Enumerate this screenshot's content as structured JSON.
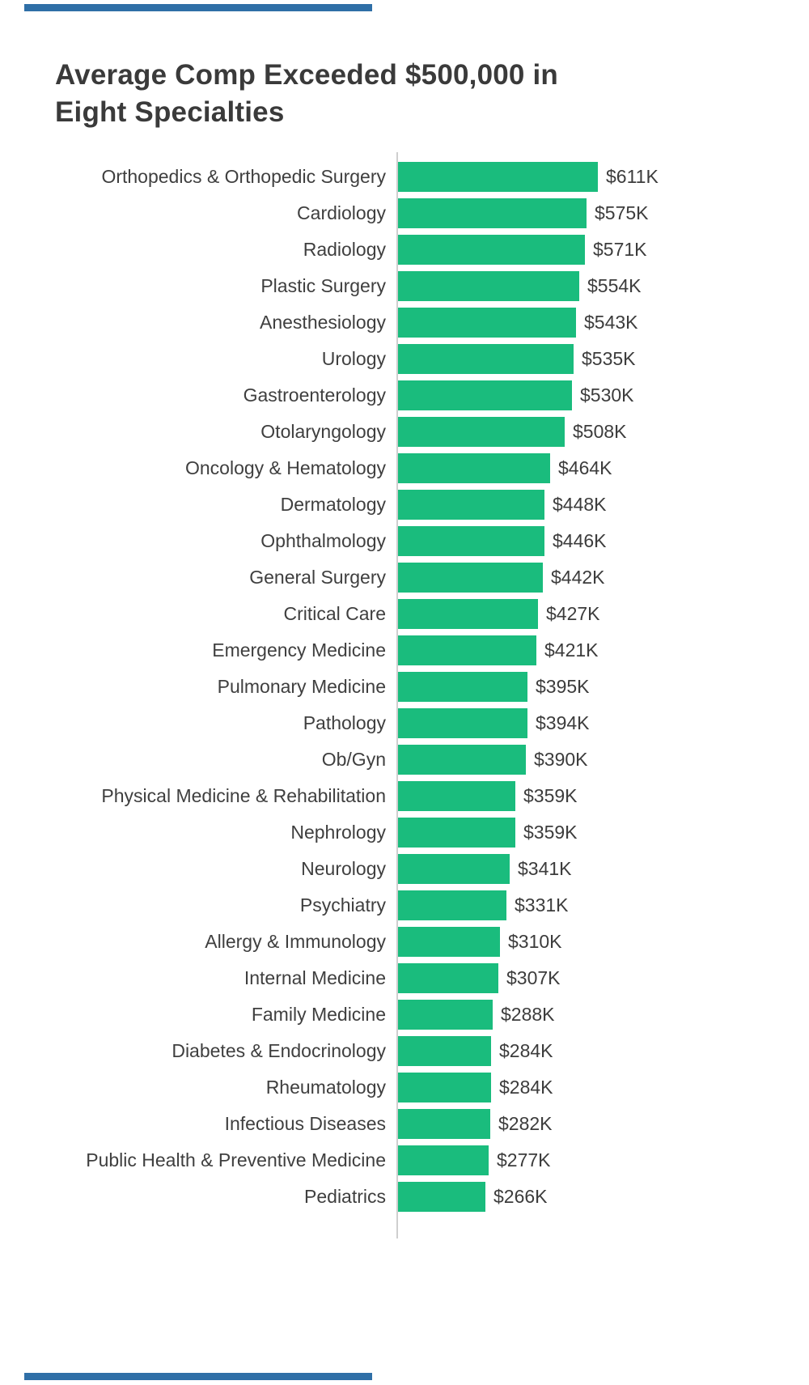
{
  "title": {
    "line1": "Average Comp Exceeded $500,000 in",
    "line2": "Eight Specialties"
  },
  "colors": {
    "bar": "#1abc7d",
    "accent_stripe": "#2f6fa7",
    "axis": "#cfcfcf",
    "title_text": "#3a3a3a",
    "label_text": "#3f3f3f"
  },
  "chart_data": {
    "type": "bar",
    "orientation": "horizontal",
    "title": "Average Comp Exceeded $500,000 in Eight Specialties",
    "xlabel": "",
    "ylabel": "",
    "unit": "USD thousands (K)",
    "xlim": [
      0,
      650
    ],
    "grid": false,
    "legend": "none",
    "categories": [
      "Orthopedics & Orthopedic Surgery",
      "Cardiology",
      "Radiology",
      "Plastic Surgery",
      "Anesthesiology",
      "Urology",
      "Gastroenterology",
      "Otolaryngology",
      "Oncology & Hematology",
      "Dermatology",
      "Ophthalmology",
      "General Surgery",
      "Critical Care",
      "Emergency Medicine",
      "Pulmonary Medicine",
      "Pathology",
      "Ob/Gyn",
      "Physical Medicine & Rehabilitation",
      "Nephrology",
      "Neurology",
      "Psychiatry",
      "Allergy & Immunology",
      "Internal Medicine",
      "Family Medicine",
      "Diabetes & Endocrinology",
      "Rheumatology",
      "Infectious Diseases",
      "Public Health & Preventive Medicine",
      "Pediatrics"
    ],
    "values": [
      611,
      575,
      571,
      554,
      543,
      535,
      530,
      508,
      464,
      448,
      446,
      442,
      427,
      421,
      395,
      394,
      390,
      359,
      359,
      341,
      331,
      310,
      307,
      288,
      284,
      284,
      282,
      277,
      266
    ],
    "value_labels": [
      "$611K",
      "$575K",
      "$571K",
      "$554K",
      "$543K",
      "$535K",
      "$530K",
      "$508K",
      "$464K",
      "$448K",
      "$446K",
      "$442K",
      "$427K",
      "$421K",
      "$395K",
      "$394K",
      "$390K",
      "$359K",
      "$359K",
      "$341K",
      "$331K",
      "$310K",
      "$307K",
      "$288K",
      "$284K",
      "$284K",
      "$282K",
      "$277K",
      "$266K"
    ]
  }
}
